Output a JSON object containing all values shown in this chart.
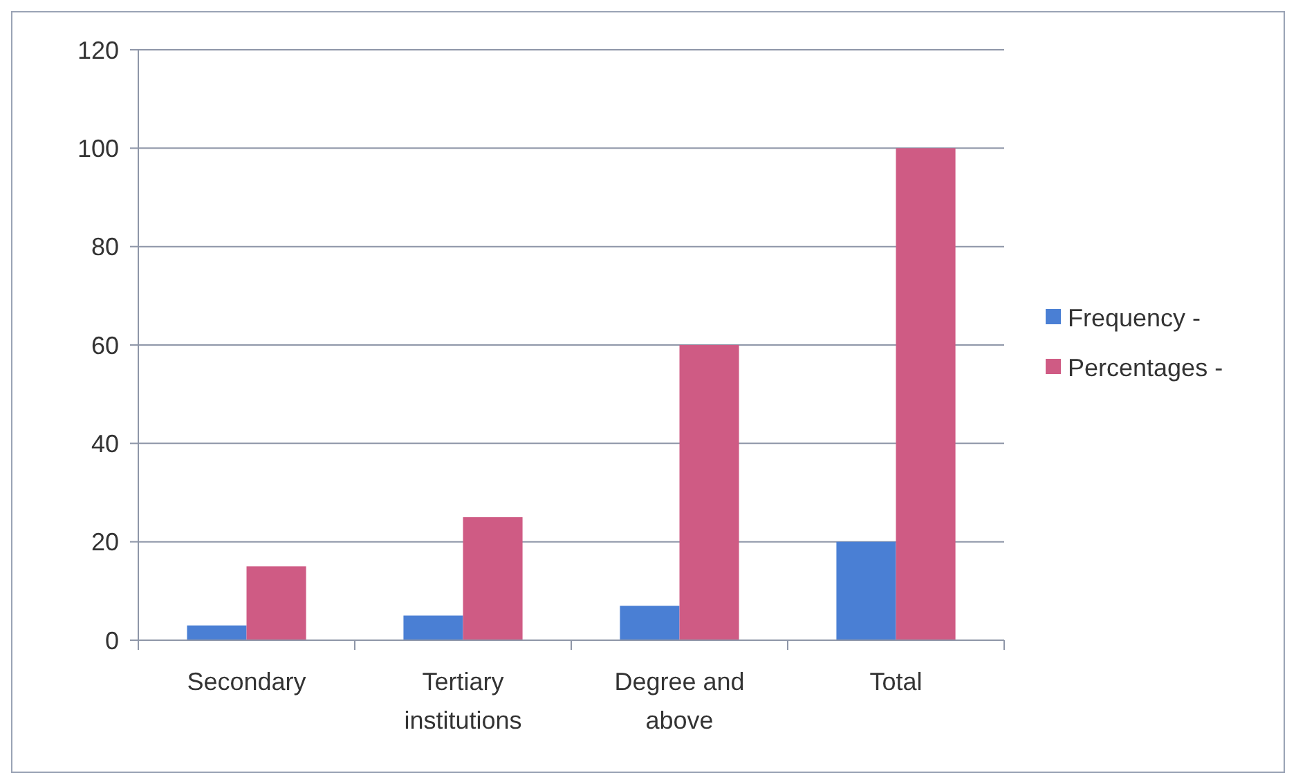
{
  "chart_data": {
    "type": "bar",
    "categories": [
      "Secondary",
      "Tertiary institutions",
      "Degree and above",
      "Total"
    ],
    "series": [
      {
        "name": "Frequency -",
        "color": "#4a7fd4",
        "values": [
          3,
          5,
          7,
          20
        ]
      },
      {
        "name": "Percentages -",
        "color": "#cf5b84",
        "values": [
          15,
          25,
          60,
          100
        ]
      }
    ],
    "ylim": [
      0,
      120
    ],
    "yticks": [
      0,
      20,
      40,
      60,
      80,
      100,
      120
    ],
    "grid": "y",
    "legend": "right"
  }
}
